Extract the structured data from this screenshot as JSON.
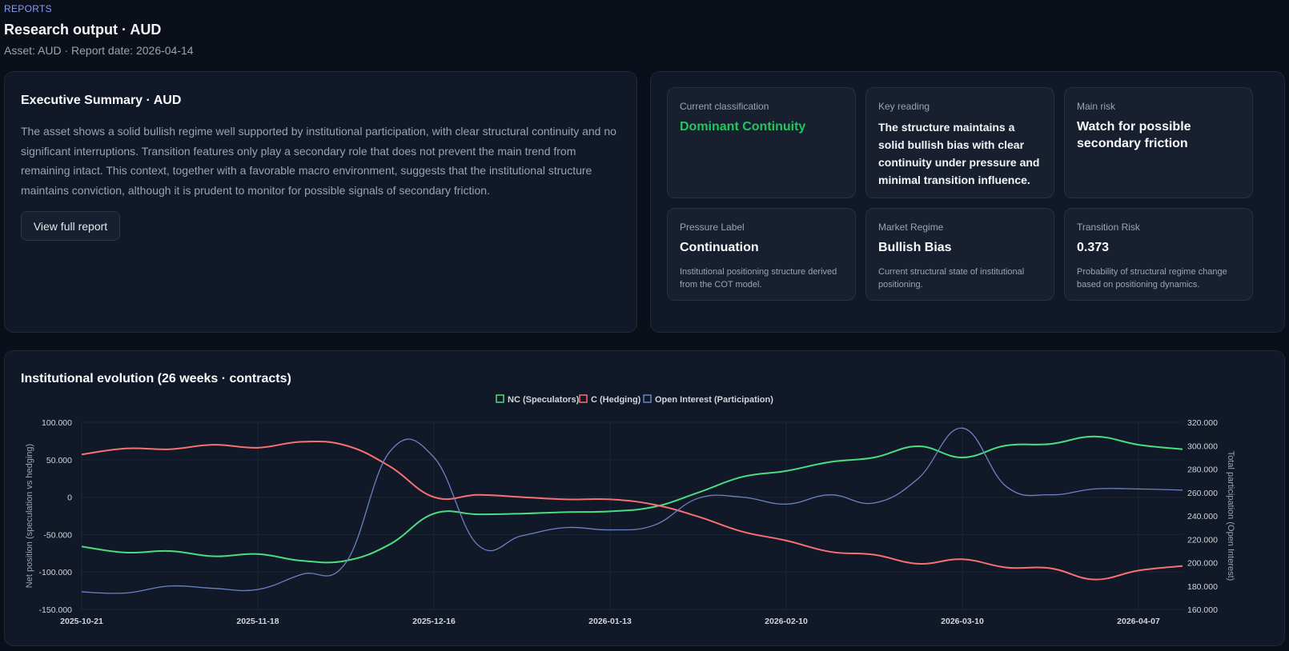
{
  "header": {
    "breadcrumb": "REPORTS",
    "title": "Research output · AUD",
    "subtitle": "Asset: AUD · Report date: 2026-04-14"
  },
  "summary": {
    "title": "Executive Summary · AUD",
    "text": "The asset shows a solid bullish regime well supported by institutional participation, with clear structural continuity and no significant interruptions. Transition features only play a secondary role that does not prevent the main trend from remaining intact. This context, together with a favorable macro environment, suggests that the institutional structure maintains conviction, although it is prudent to monitor for possible signals of secondary friction.",
    "button_label": "View full report"
  },
  "cards": {
    "classification": {
      "label": "Current classification",
      "value": "Dominant Continuity"
    },
    "key_reading": {
      "label": "Key reading",
      "value": "The structure maintains a solid bullish bias with clear continuity under pressure and minimal transition influence."
    },
    "main_risk": {
      "label": "Main risk",
      "value": "Watch for possible secondary friction"
    },
    "pressure": {
      "label": "Pressure Label",
      "value": "Continuation",
      "desc": "Institutional positioning structure derived from the COT model."
    },
    "regime": {
      "label": "Market Regime",
      "value": "Bullish Bias",
      "desc": "Current structural state of institutional positioning."
    },
    "transition": {
      "label": "Transition Risk",
      "value": "0.373",
      "desc": "Probability of structural regime change based on positioning dynamics."
    }
  },
  "colors": {
    "nc": "#4ade80",
    "c": "#f87171",
    "oi": "#6b83c4",
    "accent_green": "#22c55e"
  },
  "chart_data": {
    "type": "line",
    "title": "Institutional evolution (26 weeks · contracts)",
    "ylabel": "Net position (speculation vs hedging)",
    "y2label": "Total participation (Open Interest)",
    "ylim": [
      -150000,
      100000
    ],
    "y2lim": [
      160000,
      320000
    ],
    "yticks": [
      "100.000",
      "50.000",
      "0",
      "-50.000",
      "-100.000",
      "-150.000"
    ],
    "y2ticks": [
      "320.000",
      "300.000",
      "280.000",
      "260.000",
      "240.000",
      "220.000",
      "200.000",
      "180.000",
      "160.000"
    ],
    "x_tick_labels": [
      "2025-10-21",
      "2025-11-18",
      "2025-12-16",
      "2026-01-13",
      "2026-02-10",
      "2026-03-10",
      "2026-04-07"
    ],
    "x": [
      "2025-10-21",
      "2025-10-28",
      "2025-11-04",
      "2025-11-11",
      "2025-11-18",
      "2025-11-25",
      "2025-12-02",
      "2025-12-09",
      "2025-12-16",
      "2025-12-23",
      "2025-12-30",
      "2026-01-06",
      "2026-01-13",
      "2026-01-20",
      "2026-01-27",
      "2026-02-03",
      "2026-02-10",
      "2026-02-17",
      "2026-02-24",
      "2026-03-03",
      "2026-03-10",
      "2026-03-17",
      "2026-03-24",
      "2026-03-31",
      "2026-04-07",
      "2026-04-14"
    ],
    "series": [
      {
        "name": "NC (Speculators)",
        "axis": "left",
        "values": [
          -66000,
          -74000,
          -72000,
          -79000,
          -76000,
          -85000,
          -85000,
          -63000,
          -22000,
          -23000,
          -22000,
          -20000,
          -19000,
          -13000,
          6000,
          27000,
          35000,
          47000,
          53000,
          68000,
          53000,
          69000,
          71000,
          81000,
          70000,
          64000
        ]
      },
      {
        "name": "C (Hedging)",
        "axis": "left",
        "values": [
          57000,
          65000,
          64000,
          70000,
          66000,
          74000,
          69000,
          41000,
          0,
          3000,
          0,
          -3000,
          -3000,
          -10000,
          -26000,
          -46000,
          -58000,
          -73000,
          -77000,
          -89000,
          -83000,
          -94000,
          -95000,
          -110000,
          -98000,
          -92000
        ]
      },
      {
        "name": "Open Interest (Participation)",
        "axis": "right",
        "values": [
          175000,
          174000,
          180000,
          178000,
          177000,
          190000,
          200000,
          295000,
          290000,
          215000,
          223000,
          230000,
          228000,
          232000,
          255000,
          256000,
          250000,
          258000,
          251000,
          272000,
          315000,
          265000,
          258000,
          263000,
          263000,
          262000
        ]
      }
    ],
    "legend": "top-center",
    "grid": true
  }
}
